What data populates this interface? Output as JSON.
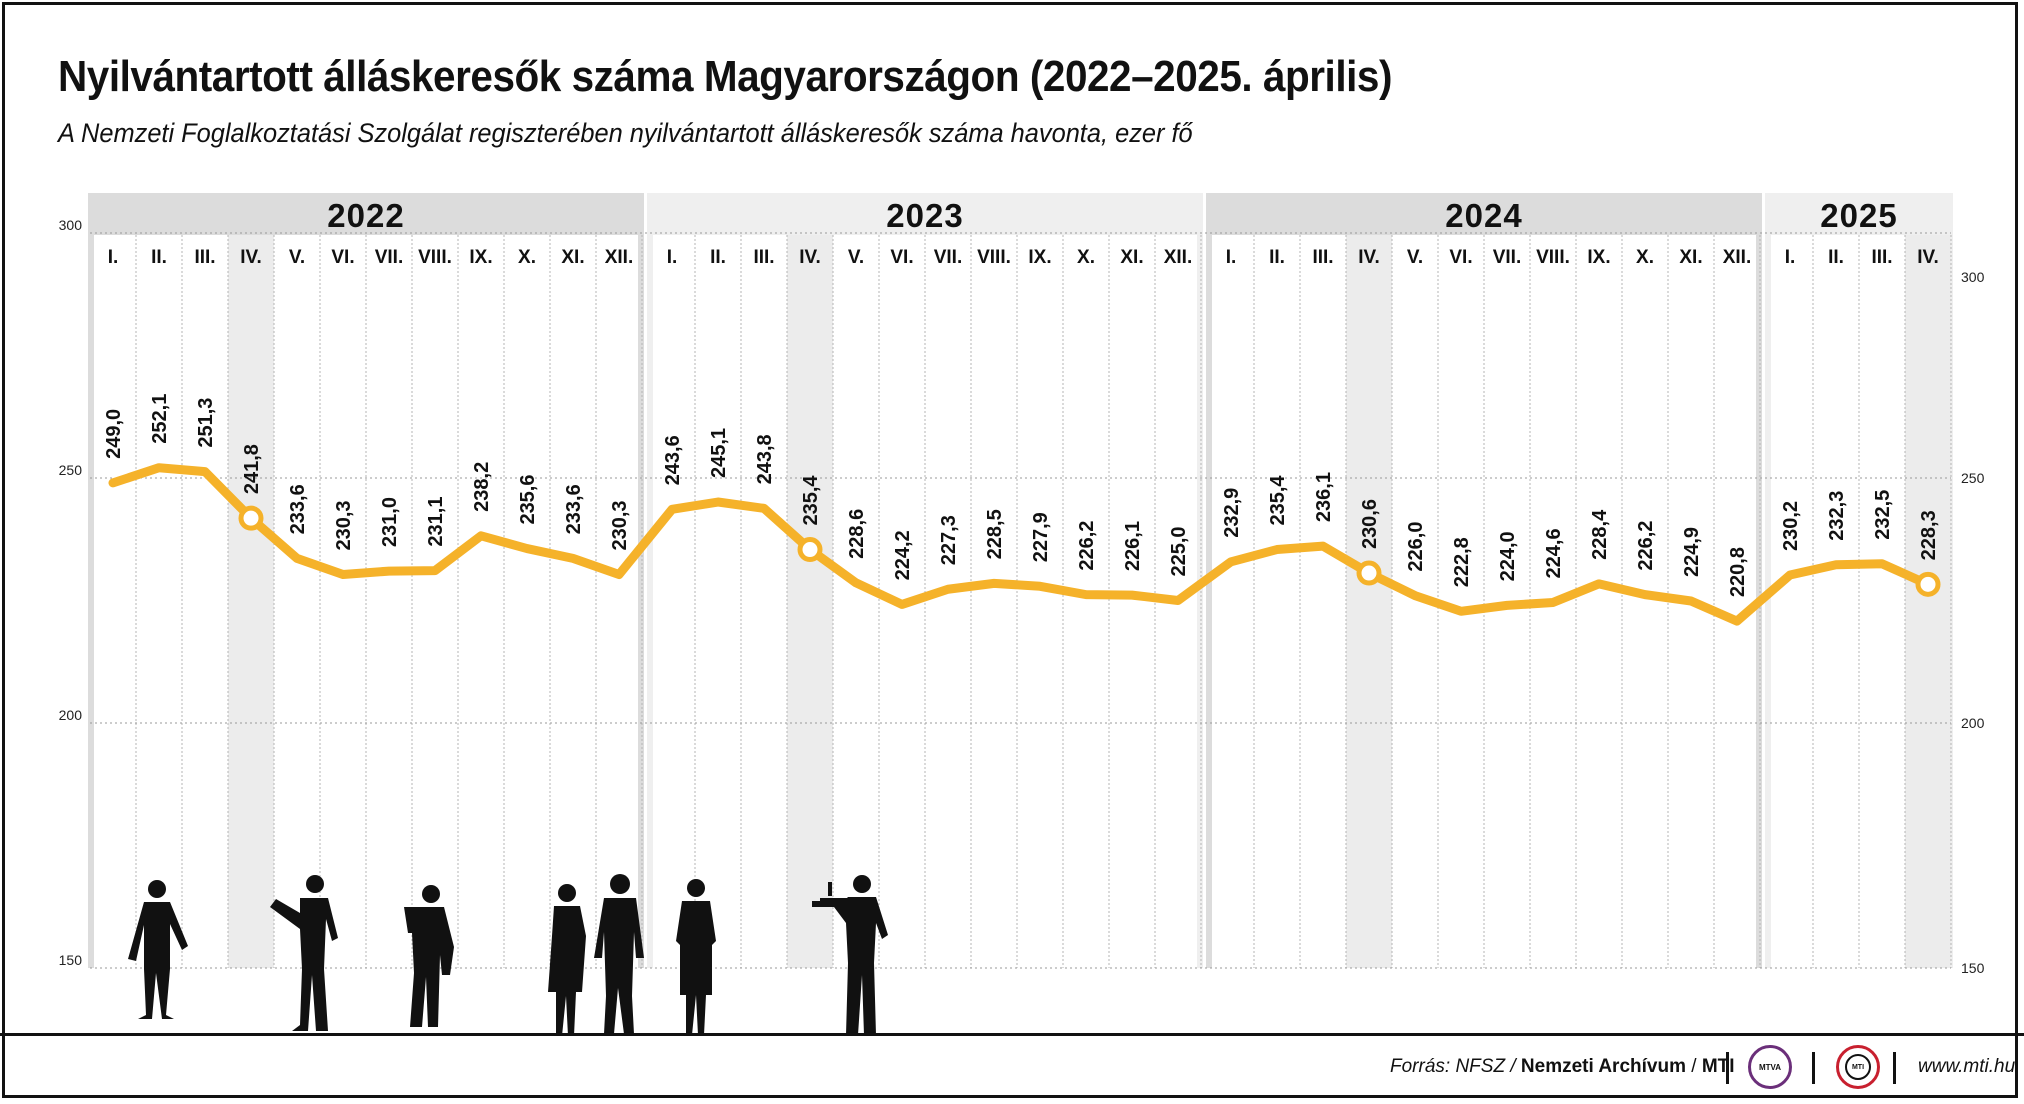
{
  "title": "Nyilvántartott álláskeresők száma Magyarországon (2022–2025. április)",
  "subtitle": "A Nemzeti Foglalkoztatási Szolgálat regiszterében nyilvántartott álláskeresők száma havonta, ezer fő",
  "colors": {
    "line": "#f5b22a",
    "year_band_dark": "#dcdcdc",
    "year_band_light": "#efefef",
    "april_column": "#ececec",
    "grid": "#999999"
  },
  "chart_data": {
    "type": "line",
    "title": "Nyilvántartott álláskeresők száma Magyarországon (2022–2025. április)",
    "ylabel": "",
    "xlabel": "",
    "ylim": [
      150,
      300
    ],
    "yticks": [
      "300",
      "250",
      "200",
      "150"
    ],
    "grid": true,
    "years": [
      {
        "label": "2022",
        "months": [
          "I.",
          "II.",
          "III.",
          "IV.",
          "V.",
          "VI.",
          "VII.",
          "VIII.",
          "IX.",
          "X.",
          "XI.",
          "XII."
        ]
      },
      {
        "label": "2023",
        "months": [
          "I.",
          "II.",
          "III.",
          "IV.",
          "V.",
          "VI.",
          "VII.",
          "VIII.",
          "IX.",
          "X.",
          "XI.",
          "XII."
        ]
      },
      {
        "label": "2024",
        "months": [
          "I.",
          "II.",
          "III.",
          "IV.",
          "V.",
          "VI.",
          "VII.",
          "VIII.",
          "IX.",
          "X.",
          "XI.",
          "XII."
        ]
      },
      {
        "label": "2025",
        "months": [
          "I.",
          "II.",
          "III.",
          "IV."
        ]
      }
    ],
    "values": [
      249.0,
      252.1,
      251.3,
      241.8,
      233.6,
      230.3,
      231.0,
      231.1,
      238.2,
      235.6,
      233.6,
      230.3,
      243.6,
      245.1,
      243.8,
      235.4,
      228.6,
      224.2,
      227.3,
      228.5,
      227.9,
      226.2,
      226.1,
      225.0,
      232.9,
      235.4,
      236.1,
      230.6,
      226.0,
      222.8,
      224.0,
      224.6,
      228.4,
      226.2,
      224.9,
      220.8,
      230.2,
      232.3,
      232.5,
      228.3
    ],
    "value_labels": [
      "249,0",
      "252,1",
      "251,3",
      "241,8",
      "233,6",
      "230,3",
      "231,0",
      "231,1",
      "238,2",
      "235,6",
      "233,6",
      "230,3",
      "243,6",
      "245,1",
      "243,8",
      "235,4",
      "228,6",
      "224,2",
      "227,3",
      "228,5",
      "227,9",
      "226,2",
      "226,1",
      "225,0",
      "232,9",
      "235,4",
      "236,1",
      "230,6",
      "226,0",
      "222,8",
      "224,0",
      "224,6",
      "228,4",
      "226,2",
      "224,9",
      "220,8",
      "230,2",
      "232,3",
      "232,5",
      "228,3"
    ],
    "highlighted_month": "IV."
  },
  "footer": {
    "source_prefix": "Forrás: NFSZ /",
    "source_archive": "Nemzeti Archívum",
    "source_slash": "/",
    "source_agency": "MTI",
    "logo_mtva": "MTVA",
    "logo_mti": "MTI",
    "website": "www.mti.hu"
  }
}
